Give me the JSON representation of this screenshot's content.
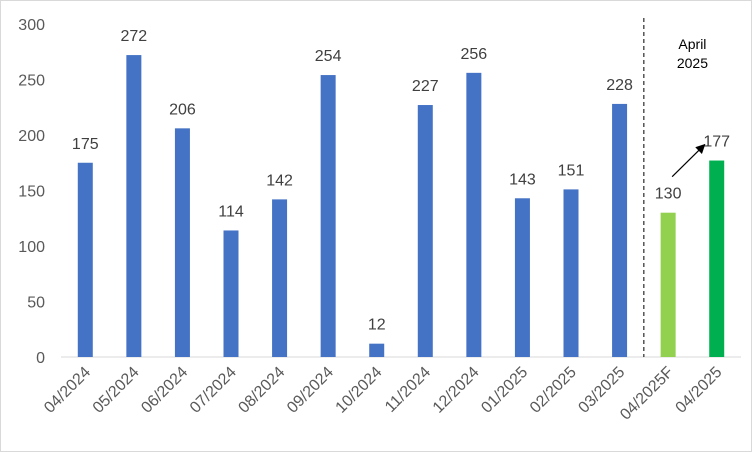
{
  "chart_data": {
    "type": "bar",
    "categories": [
      "04/2024",
      "05/2024",
      "06/2024",
      "07/2024",
      "08/2024",
      "09/2024",
      "10/2024",
      "11/2024",
      "12/2024",
      "01/2025",
      "02/2025",
      "03/2025",
      "04/2025F",
      "04/2025"
    ],
    "values": [
      175,
      272,
      206,
      114,
      142,
      254,
      12,
      227,
      256,
      143,
      151,
      228,
      130,
      177
    ],
    "ylim": [
      0,
      300
    ],
    "yticks": [
      0,
      50,
      100,
      150,
      200,
      250,
      300
    ],
    "grid": false,
    "legend": "none",
    "colors": {
      "actual": "#4472C4",
      "forecast": "#92D050",
      "april_actual": "#00B050"
    },
    "bar_color_keys": [
      "actual",
      "actual",
      "actual",
      "actual",
      "actual",
      "actual",
      "actual",
      "actual",
      "actual",
      "actual",
      "actual",
      "actual",
      "forecast",
      "april_actual"
    ],
    "annotations": {
      "april_label_lines": [
        "April",
        "2025"
      ],
      "separator_style": "dashed",
      "arrow": "from 04/2025F to 04/2025"
    }
  }
}
